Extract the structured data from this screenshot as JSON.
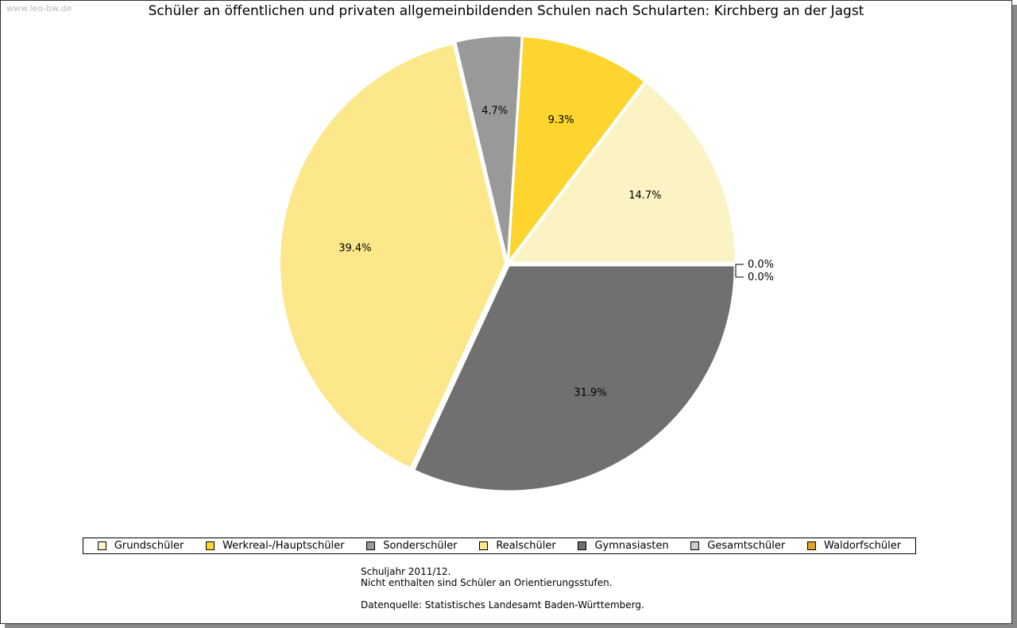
{
  "watermark": "www.leo-bw.de",
  "chart_data": {
    "type": "pie",
    "title": "Schüler an öffentlichen und privaten allgemeinbildenden Schulen nach Schularten: Kirchberg an der Jagst",
    "slices": [
      {
        "label": "Grundschüler",
        "value": 14.7,
        "text": "14.7%",
        "color": "#fcf3c4"
      },
      {
        "label": "Werkreal-/Hauptschüler",
        "value": 9.3,
        "text": "9.3%",
        "color": "#fdd52e"
      },
      {
        "label": "Sonderschüler",
        "value": 4.7,
        "text": "4.7%",
        "color": "#999999"
      },
      {
        "label": "Realschüler",
        "value": 39.4,
        "text": "39.4%",
        "color": "#fce78a"
      },
      {
        "label": "Gymnasiasten",
        "value": 31.9,
        "text": "31.9%",
        "color": "#707070"
      },
      {
        "label": "Gesamtschüler",
        "value": 0.0,
        "text": "0.0%",
        "color": "#cccccc"
      },
      {
        "label": "Waldorfschüler",
        "value": 0.0,
        "text": "0.0%",
        "color": "#e0a520"
      }
    ],
    "legend_position": "bottom"
  },
  "notes": [
    "Schuljahr 2011/12.",
    "Nicht enthalten sind Schüler an Orientierungsstufen.",
    "",
    "Datenquelle: Statistisches Landesamt Baden-Württemberg."
  ]
}
